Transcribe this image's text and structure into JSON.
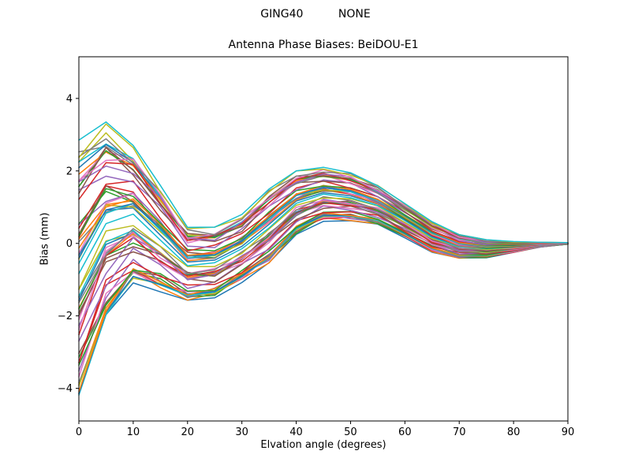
{
  "figure": {
    "suptitle": "GING40          NONE",
    "title": "Antenna Phase Biases: BeiDOU-E1",
    "xlabel": "Elvation angle (degrees)",
    "ylabel": "Bias (mm)"
  },
  "chart_data": {
    "type": "line",
    "suptitle": "GING40          NONE",
    "title": "Antenna Phase Biases: BeiDOU-E1",
    "xlabel": "Elvation angle (degrees)",
    "ylabel": "Bias (mm)",
    "xlim": [
      0,
      90
    ],
    "ylim": [
      -4.9,
      5.15
    ],
    "xticks": [
      0,
      10,
      20,
      30,
      40,
      50,
      60,
      70,
      80,
      90
    ],
    "xticklabels": [
      "0",
      "10",
      "20",
      "30",
      "40",
      "50",
      "60",
      "70",
      "80",
      "90"
    ],
    "yticks": [
      -4,
      -2,
      0,
      2,
      4
    ],
    "yticklabels": [
      "−4",
      "−2",
      "0",
      "2",
      "4"
    ],
    "grid": false,
    "legend": false,
    "x": [
      0,
      5,
      10,
      15,
      20,
      25,
      30,
      35,
      40,
      45,
      50,
      55,
      60,
      65,
      70,
      75,
      80,
      85,
      90
    ],
    "band_upper": [
      2.85,
      3.35,
      2.7,
      1.6,
      0.45,
      0.45,
      0.8,
      1.5,
      2.0,
      2.1,
      1.95,
      1.6,
      1.1,
      0.6,
      0.25,
      0.1,
      0.05,
      0.03,
      0.02
    ],
    "band_lower": [
      -4.5,
      -2.3,
      -1.2,
      -1.4,
      -1.65,
      -1.55,
      -1.1,
      -0.6,
      0.2,
      0.6,
      0.6,
      0.5,
      0.15,
      -0.25,
      -0.42,
      -0.4,
      -0.25,
      -0.1,
      -0.02
    ],
    "n_series": 60,
    "band_dispersion": {
      "amplitude": 0.12,
      "wiggle": 0.05,
      "seed_a": 12.9898,
      "seed_b": 78.233,
      "profile": [
        1,
        0.9,
        0.75,
        0.6,
        0.5,
        0.5,
        0.5,
        0.45,
        0.4,
        0.4,
        0.35,
        0.3,
        0.3,
        0.25,
        0.2,
        0.15,
        0.1,
        0.05,
        0
      ]
    },
    "line_width": 1.5,
    "color_cycle": [
      "#1f77b4",
      "#ff7f0e",
      "#2ca02c",
      "#d62728",
      "#9467bd",
      "#8c564b",
      "#e377c2",
      "#7f7f7f",
      "#bcbd22",
      "#17becf"
    ],
    "axes_color": "#000000",
    "background_color": "#ffffff"
  }
}
